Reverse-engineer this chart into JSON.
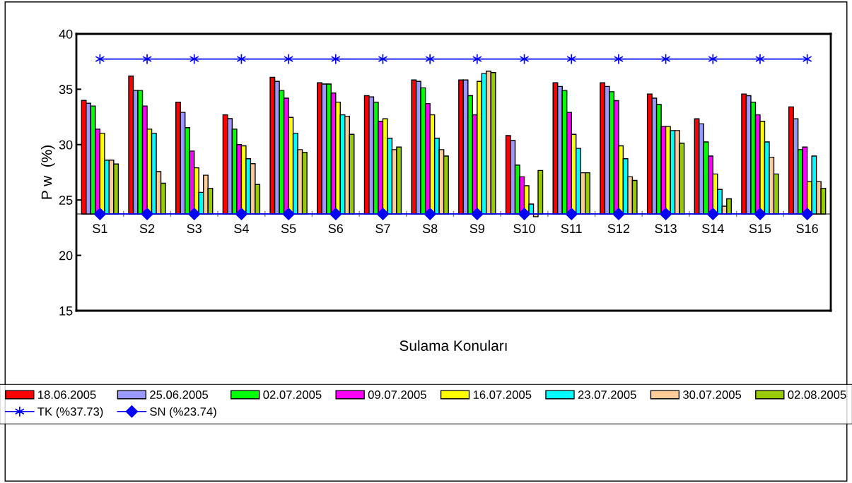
{
  "chart_data": {
    "type": "bar",
    "ylabel": "P w  (%)",
    "xlabel": "Sulama Konuları",
    "categories": [
      "S1",
      "S2",
      "S3",
      "S4",
      "S5",
      "S6",
      "S7",
      "S8",
      "S9",
      "S10",
      "S11",
      "S12",
      "S13",
      "S14",
      "S15",
      "S16"
    ],
    "ylim": [
      15,
      40
    ],
    "yticks": [
      15,
      20,
      25,
      30,
      35,
      40
    ],
    "grid": false,
    "legend": "bottom",
    "series": [
      {
        "name": "18.06.2005",
        "color": "#ff0000",
        "base": [
          23.74,
          23.74,
          23.74,
          23.74,
          23.74,
          23.74,
          23.74,
          23.74,
          23.74,
          23.74,
          23.74,
          23.74,
          23.74,
          23.74,
          23.74,
          23.74
        ],
        "values": [
          10.25,
          12.45,
          10.1,
          8.95,
          12.34,
          11.84,
          10.68,
          12.1,
          12.1,
          7.08,
          11.84,
          11.84,
          10.83,
          8.59,
          10.83,
          9.67
        ]
      },
      {
        "name": "25.06.2005",
        "color": "#9999ff",
        "base": [
          23.74,
          23.74,
          23.74,
          23.74,
          23.74,
          23.74,
          23.74,
          23.74,
          23.74,
          23.74,
          23.74,
          23.74,
          23.74,
          23.74,
          23.74,
          23.74
        ],
        "values": [
          9.99,
          11.15,
          9.17,
          8.61,
          11.97,
          11.73,
          10.57,
          11.97,
          12.1,
          6.63,
          11.52,
          11.52,
          10.46,
          8.14,
          10.68,
          8.59
        ]
      },
      {
        "name": "02.07.2005",
        "color": "#00ff00",
        "base": [
          23.74,
          23.74,
          23.74,
          23.74,
          23.74,
          23.74,
          23.74,
          23.74,
          23.74,
          23.74,
          23.74,
          23.74,
          23.74,
          23.74,
          23.74,
          23.74
        ],
        "values": [
          9.75,
          11.15,
          7.79,
          7.66,
          11.15,
          11.73,
          10.1,
          11.39,
          10.68,
          4.41,
          11.15,
          11.04,
          9.88,
          6.5,
          10.1,
          5.81
        ]
      },
      {
        "name": "09.07.2005",
        "color": "#ff00ff",
        "base": [
          23.74,
          23.74,
          23.74,
          23.74,
          23.74,
          23.74,
          23.74,
          23.74,
          23.74,
          23.74,
          23.74,
          23.74,
          23.74,
          23.74,
          23.74,
          23.74
        ],
        "values": [
          7.66,
          9.75,
          5.68,
          6.26,
          10.46,
          10.92,
          8.37,
          9.97,
          8.95,
          3.35,
          9.17,
          10.23,
          7.9,
          5.23,
          8.95,
          6.04
        ]
      },
      {
        "name": "16.07.2005",
        "color": "#ffff00",
        "base": [
          23.74,
          23.74,
          23.74,
          23.74,
          23.74,
          23.74,
          23.74,
          23.74,
          23.74,
          23.74,
          23.74,
          23.74,
          23.74,
          23.74,
          23.74,
          23.74
        ],
        "values": [
          7.29,
          7.66,
          4.17,
          6.15,
          8.72,
          10.1,
          8.59,
          8.95,
          11.97,
          2.55,
          7.19,
          6.15,
          7.9,
          3.61,
          8.37,
          2.92
        ]
      },
      {
        "name": "23.07.2005",
        "color": "#00ffff",
        "base": [
          23.74,
          23.74,
          23.74,
          23.74,
          23.74,
          23.74,
          23.74,
          23.74,
          23.74,
          23.74,
          23.74,
          23.74,
          23.74,
          23.74,
          23.74,
          23.74
        ],
        "values": [
          4.86,
          7.29,
          1.95,
          4.99,
          7.29,
          8.95,
          6.84,
          6.84,
          12.68,
          0.89,
          5.92,
          4.99,
          7.53,
          2.21,
          6.5,
          5.23
        ]
      },
      {
        "name": "30.07.2005",
        "color": "#ffcc99",
        "base": [
          23.74,
          23.74,
          23.74,
          23.74,
          23.74,
          23.74,
          23.74,
          23.74,
          23.74,
          23.74,
          23.74,
          23.74,
          23.74,
          23.74,
          23.74,
          23.74
        ],
        "values": [
          4.86,
          3.82,
          3.5,
          4.54,
          5.81,
          8.82,
          5.81,
          5.81,
          12.9,
          -0.25,
          3.72,
          3.35,
          7.53,
          0.7,
          5.12,
          2.92
        ]
      },
      {
        "name": "02.08.2005",
        "color": "#99cc00",
        "base": [
          23.74,
          23.74,
          23.74,
          23.74,
          23.74,
          23.74,
          23.74,
          23.74,
          23.74,
          23.74,
          23.74,
          23.74,
          23.74,
          23.74,
          23.74,
          23.74
        ],
        "values": [
          4.51,
          2.77,
          2.32,
          2.66,
          5.57,
          7.19,
          6.04,
          5.23,
          12.77,
          3.93,
          3.72,
          3.03,
          6.39,
          1.37,
          3.61,
          2.32
        ]
      },
      {
        "name": "TK (%37.73)",
        "type": "line",
        "color": "#0000ff",
        "marker": "cross",
        "line_style": "solid",
        "values": [
          37.73,
          37.73,
          37.73,
          37.73,
          37.73,
          37.73,
          37.73,
          37.73,
          37.73,
          37.73,
          37.73,
          37.73,
          37.73,
          37.73,
          37.73,
          37.73
        ]
      },
      {
        "name": "SN (%23.74)",
        "type": "line",
        "color": "#0000ff",
        "marker": "diamond",
        "line_style": "solid",
        "values": [
          23.74,
          23.74,
          23.74,
          23.74,
          23.74,
          23.74,
          23.74,
          23.74,
          23.74,
          23.74,
          23.74,
          23.74,
          23.74,
          23.74,
          23.74,
          23.74
        ]
      }
    ]
  }
}
